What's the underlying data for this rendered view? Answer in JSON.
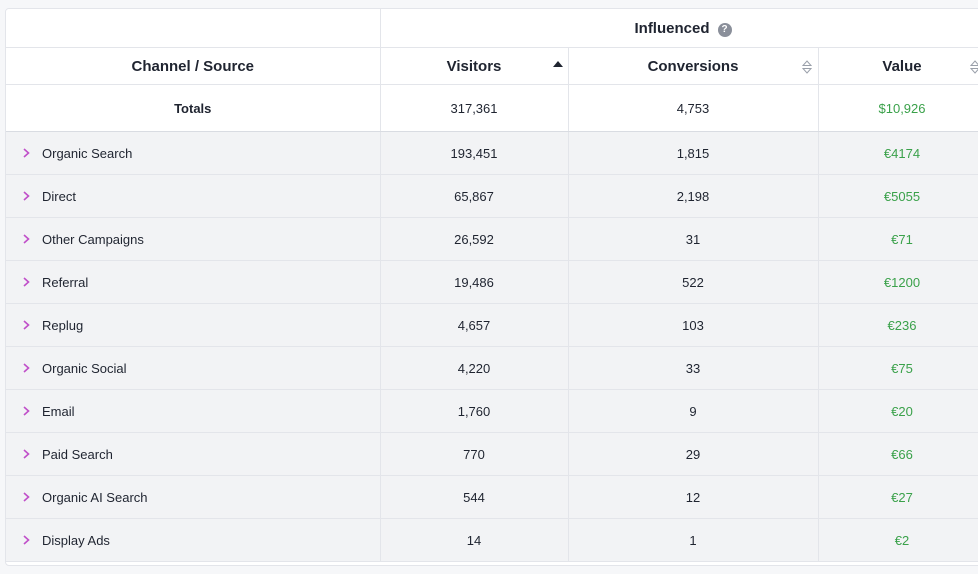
{
  "header": {
    "group_title": "Influenced",
    "help_glyph": "?",
    "columns": [
      "Channel / Source",
      "Visitors",
      "Conversions",
      "Value"
    ]
  },
  "totals": {
    "label": "Totals",
    "visitors": "317,361",
    "conversions": "4,753",
    "value": "$10,926"
  },
  "rows": [
    {
      "channel": "Organic Search",
      "visitors": "193,451",
      "conversions": "1,815",
      "value": "€4174"
    },
    {
      "channel": "Direct",
      "visitors": "65,867",
      "conversions": "2,198",
      "value": "€5055"
    },
    {
      "channel": "Other Campaigns",
      "visitors": "26,592",
      "conversions": "31",
      "value": "€71"
    },
    {
      "channel": "Referral",
      "visitors": "19,486",
      "conversions": "522",
      "value": "€1200"
    },
    {
      "channel": "Replug",
      "visitors": "4,657",
      "conversions": "103",
      "value": "€236"
    },
    {
      "channel": "Organic Social",
      "visitors": "4,220",
      "conversions": "33",
      "value": "€75"
    },
    {
      "channel": "Email",
      "visitors": "1,760",
      "conversions": "9",
      "value": "€20"
    },
    {
      "channel": "Paid Search",
      "visitors": "770",
      "conversions": "29",
      "value": "€66"
    },
    {
      "channel": "Organic AI Search",
      "visitors": "544",
      "conversions": "12",
      "value": "€27"
    },
    {
      "channel": "Display Ads",
      "visitors": "14",
      "conversions": "1",
      "value": "€2"
    }
  ],
  "colors": {
    "value_text": "#3aa14a",
    "chevron": "#c04fc9",
    "row_bg": "#f2f3f5"
  },
  "icons": {
    "help": "help-circle-icon",
    "sort_visitors": "sort-ascending-icon",
    "sort_other": "sort-unsorted-icon",
    "expand": "chevron-right-icon"
  }
}
